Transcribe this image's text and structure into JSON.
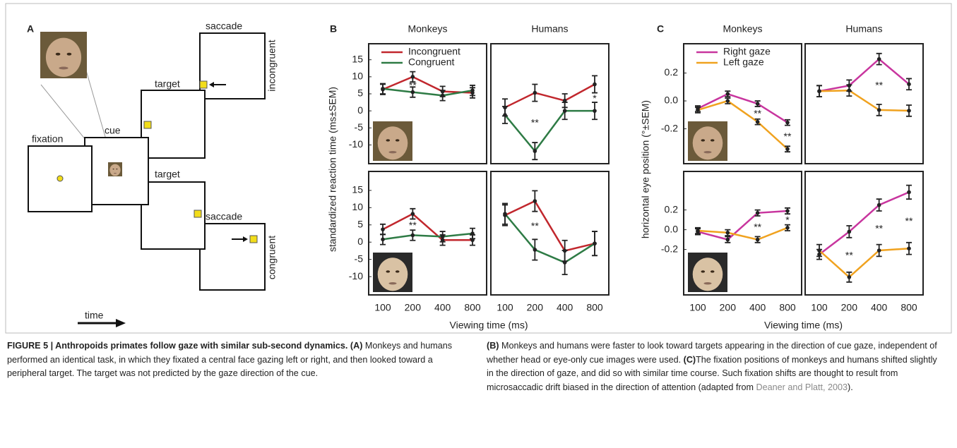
{
  "diagram": {
    "label": "A",
    "steps": [
      "fixation",
      "cue",
      "target",
      "saccade",
      "incongruent",
      "target",
      "saccade",
      "congruent"
    ],
    "time_label": "time"
  },
  "chart_data": [
    {
      "type": "line",
      "label": "B",
      "columns": [
        "Monkeys",
        "Humans"
      ],
      "ylabel": "standardized reaction time (ms±SEM)",
      "xlabel": "Viewing time (ms)",
      "categories": [
        "100",
        "200",
        "400",
        "800"
      ],
      "series": [
        {
          "name": "Incongruent",
          "color": "#c1272d"
        },
        {
          "name": "Congruent",
          "color": "#2e7b45"
        }
      ],
      "rows": [
        {
          "ylim": [
            -15.5,
            19.7
          ],
          "yticks": [
            -10,
            -5,
            0,
            5,
            10,
            15
          ],
          "cells": [
            {
              "values": [
                [
                  6.3,
                  10,
                  5.7,
                  5.3
                ],
                [
                  6.5,
                  5.5,
                  4.5,
                  6
                ]
              ],
              "errors": [
                [
                  1.5,
                  1.5,
                  1.5,
                  1.5
                ],
                [
                  1.5,
                  1.5,
                  1.5,
                  1.5
                ]
              ],
              "annotations": [
                {
                  "text": "**",
                  "x": "200"
                }
              ]
            },
            {
              "values": [
                [
                  1,
                  5.3,
                  3,
                  7.8
                ],
                [
                  -1.2,
                  -11.8,
                  0,
                  0
                ]
              ],
              "errors": [
                [
                  2.5,
                  2.5,
                  2,
                  2.5
                ],
                [
                  2.5,
                  2.5,
                  2.5,
                  2.5
                ]
              ],
              "annotations": [
                {
                  "text": "**",
                  "x": "200"
                },
                {
                  "text": "*",
                  "x": "800"
                }
              ]
            }
          ]
        },
        {
          "ylim": [
            -15.3,
            20.5
          ],
          "yticks": [
            -10,
            -5,
            0,
            5,
            10,
            15
          ],
          "cells": [
            {
              "values": [
                [
                  3.7,
                  8.2,
                  0.6,
                  0.6
                ],
                [
                  0.8,
                  2,
                  1.6,
                  2.5
                ]
              ],
              "errors": [
                [
                  1.5,
                  1.5,
                  1.5,
                  1.5
                ],
                [
                  1.5,
                  1.5,
                  1.5,
                  1.5
                ]
              ],
              "annotations": [
                {
                  "text": "**",
                  "x": "200"
                }
              ]
            },
            {
              "values": [
                [
                  7.8,
                  11.9,
                  -2.5,
                  -0.4
                ],
                [
                  8.2,
                  -2.2,
                  -5.9,
                  -0.4
                ]
              ],
              "errors": [
                [
                  3,
                  3,
                  3,
                  3.5
                ],
                [
                  3,
                  3,
                  3.5,
                  3.5
                ]
              ],
              "annotations": [
                {
                  "text": "**",
                  "x": "200"
                }
              ]
            }
          ]
        }
      ]
    },
    {
      "type": "line",
      "label": "C",
      "columns": [
        "Monkeys",
        "Humans"
      ],
      "ylabel": "horizontal eye position (°±SEM)",
      "xlabel": "Viewing time (ms)",
      "categories": [
        "100",
        "200",
        "400",
        "800"
      ],
      "series": [
        {
          "name": "Right gaze",
          "color": "#c8359e"
        },
        {
          "name": "Left gaze",
          "color": "#f0a21f"
        }
      ],
      "rows": [
        {
          "ylim": [
            -0.45,
            0.41
          ],
          "yticks": [
            -0.2,
            {
              "value": 0,
              "label": "0.0"
            },
            0.2
          ],
          "cells": [
            {
              "values": [
                [
                  -0.055,
                  0.05,
                  -0.02,
                  -0.155
                ],
                [
                  -0.065,
                  0,
                  -0.15,
                  -0.345
                ]
              ],
              "errors": [
                [
                  0.02,
                  0.02,
                  0.02,
                  0.02
                ],
                [
                  0.02,
                  0.02,
                  0.02,
                  0.02
                ]
              ],
              "annotations": [
                {
                  "text": "**",
                  "x": "400"
                },
                {
                  "text": "**",
                  "x": "800"
                }
              ]
            },
            {
              "values": [
                [
                  0.07,
                  0.11,
                  0.3,
                  0.12
                ],
                [
                  0.07,
                  0.075,
                  -0.065,
                  -0.07
                ]
              ],
              "errors": [
                [
                  0.04,
                  0.04,
                  0.04,
                  0.04
                ],
                [
                  0.04,
                  0.04,
                  0.04,
                  0.04
                ]
              ],
              "annotations": [
                {
                  "text": "**",
                  "x": "400"
                }
              ]
            }
          ]
        },
        {
          "ylim": [
            -0.66,
            0.59
          ],
          "yticks": [
            -0.2,
            {
              "value": 0,
              "label": "0.0"
            },
            0.2
          ],
          "cells": [
            {
              "values": [
                [
                  -0.02,
                  -0.1,
                  0.17,
                  0.19
                ],
                [
                  -0.01,
                  -0.03,
                  -0.1,
                  0.02
                ]
              ],
              "errors": [
                [
                  0.03,
                  0.03,
                  0.03,
                  0.03
                ],
                [
                  0.03,
                  0.03,
                  0.03,
                  0.03
                ]
              ],
              "annotations": [
                {
                  "text": "**",
                  "x": "400"
                },
                {
                  "text": "*",
                  "x": "800"
                }
              ]
            },
            {
              "values": [
                [
                  -0.25,
                  -0.02,
                  0.25,
                  0.38
                ],
                [
                  -0.21,
                  -0.48,
                  -0.21,
                  -0.19
                ]
              ],
              "errors": [
                [
                  0.05,
                  0.06,
                  0.06,
                  0.07
                ],
                [
                  0.06,
                  0.05,
                  0.06,
                  0.06
                ]
              ],
              "annotations": [
                {
                  "text": "**",
                  "x": "200"
                },
                {
                  "text": "**",
                  "x": "400"
                },
                {
                  "text": "**",
                  "x": "800"
                }
              ]
            }
          ]
        }
      ]
    }
  ],
  "caption": {
    "title": "FIGURE 5 | Anthropoids primates follow gaze with similar sub-second dynamics.",
    "parts": [
      {
        "label": "(A)",
        "text": "Monkeys and humans performed an identical task, in which they fixated a central face gazing left or right, and then looked toward a peripheral target. The target was not predicted by the gaze direction of the cue."
      },
      {
        "label": "(B)",
        "text": "Monkeys and humans were faster to look toward targets appearing in the direction of cue gaze, independent of whether head or eye-only cue images were used."
      },
      {
        "label": "(C)",
        "text": "The fixation positions of monkeys and humans shifted slightly in the direction of gaze, and did so with similar time course. Such fixation shifts are thought to result from microsaccadic drift biased in the direction of attention (adapted from ",
        "citation": "Deaner and Platt, 2003",
        "tail": ")."
      }
    ]
  }
}
